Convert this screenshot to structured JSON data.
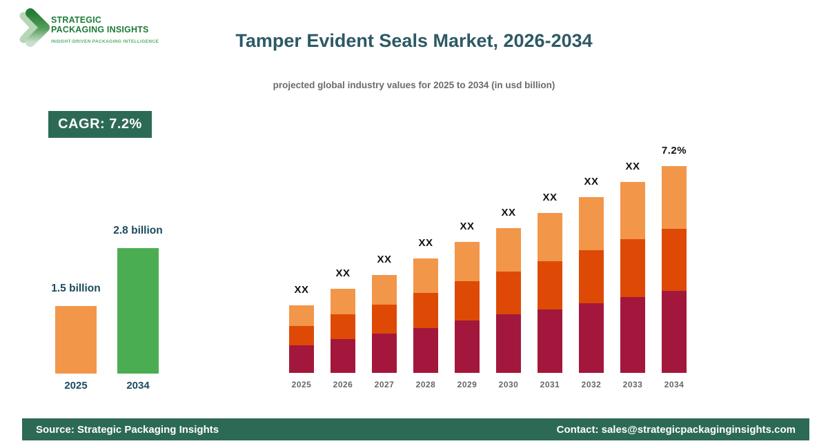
{
  "logo": {
    "name_line1": "STRATEGIC",
    "name_line2": "PACKAGING INSIGHTS",
    "tagline": "INSIGHT-DRIVEN PACKAGING INTELLIGENCE",
    "icon": "double-chevron-right-icon",
    "colors": {
      "text": "#1E7B38",
      "tagline": "#53AE66",
      "chevron_dark": "#267B35",
      "chevron_light": "#B7D6B8"
    }
  },
  "header": {
    "title": "Tamper Evident Seals Market, 2026-2034",
    "subtitle": "projected global industry values for 2025 to 2034 (in usd billion)"
  },
  "cagr_badge": {
    "label": "CAGR: 7.2%",
    "bg": "#2D6A55"
  },
  "footer": {
    "source": "Source: Strategic Packaging Insights",
    "contact": "Contact: sales@strategicpackaginginsights.com",
    "bg": "#2D6A55"
  },
  "chart_data": [
    {
      "type": "bar",
      "name": "summary-growth-chart",
      "categories": [
        "2025",
        "2034"
      ],
      "values": [
        1.5,
        2.8
      ],
      "value_labels": [
        "1.5 billion",
        "2.8 billion"
      ],
      "colors": [
        "#F2964A",
        "#4BAD52"
      ],
      "unit": "usd billion",
      "grid": false,
      "value_axis": "hidden"
    },
    {
      "type": "bar",
      "subtype": "stacked",
      "name": "yearly-stacked-chart",
      "categories": [
        "2025",
        "2026",
        "2027",
        "2028",
        "2029",
        "2030",
        "2031",
        "2032",
        "2033",
        "2034"
      ],
      "series": [
        {
          "name": "segment-bottom",
          "color": "#A3173C",
          "values": [
            40,
            49,
            57,
            65,
            76,
            85,
            92,
            101,
            110,
            119
          ]
        },
        {
          "name": "segment-middle",
          "color": "#DE4A06",
          "values": [
            28,
            36,
            42,
            51,
            57,
            62,
            70,
            77,
            84,
            90
          ]
        },
        {
          "name": "segment-top",
          "color": "#F2964A",
          "values": [
            30,
            37,
            43,
            50,
            57,
            63,
            70,
            77,
            83,
            91
          ]
        }
      ],
      "bar_labels": [
        "XX",
        "XX",
        "XX",
        "XX",
        "XX",
        "XX",
        "XX",
        "XX",
        "XX",
        "7.2%"
      ],
      "values_hidden": true,
      "unit": "relative height (actual values masked as XX)",
      "grid": false,
      "value_axis": "hidden",
      "legend": "none"
    }
  ]
}
